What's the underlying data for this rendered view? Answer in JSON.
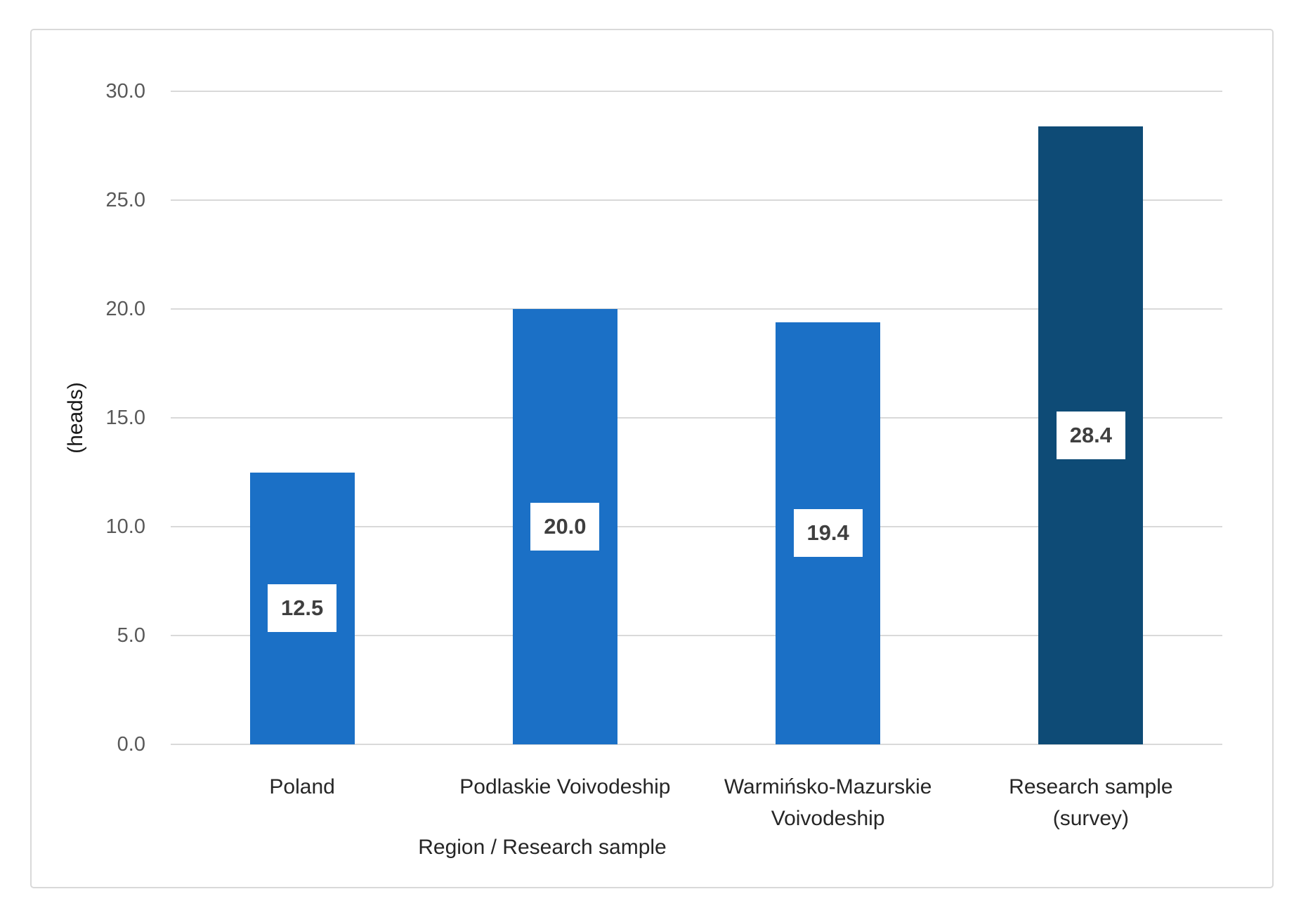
{
  "chart_data": {
    "type": "bar",
    "categories": [
      "Poland",
      "Podlaskie Voivodeship",
      "Warmińsko-Mazurskie\nVoivodeship",
      "Research sample\n(survey)"
    ],
    "values": [
      12.5,
      20.0,
      19.4,
      28.4
    ],
    "data_labels": [
      "12.5",
      "20.0",
      "19.4",
      "28.4"
    ],
    "bar_colors": [
      "#1b70c6",
      "#1b70c6",
      "#1b70c6",
      "#0e4b76"
    ],
    "title": "",
    "xlabel": "Region / Research sample",
    "ylabel": "(heads)",
    "ylim": [
      0,
      30
    ],
    "ytick_labels": [
      "0.0",
      "5.0",
      "10.0",
      "15.0",
      "20.0",
      "25.0",
      "30.0"
    ],
    "ytick_values": [
      0,
      5,
      10,
      15,
      20,
      25,
      30
    ],
    "grid": "horizontal",
    "gridline_color": "#d9d9d9",
    "legend": "none",
    "frame_border_color": "#d9d9d9",
    "tick_text_color": "#595959",
    "category_text_color": "#262626",
    "data_label_text_color": "#3f3f3f",
    "data_label_box_color": "#ffffff"
  }
}
